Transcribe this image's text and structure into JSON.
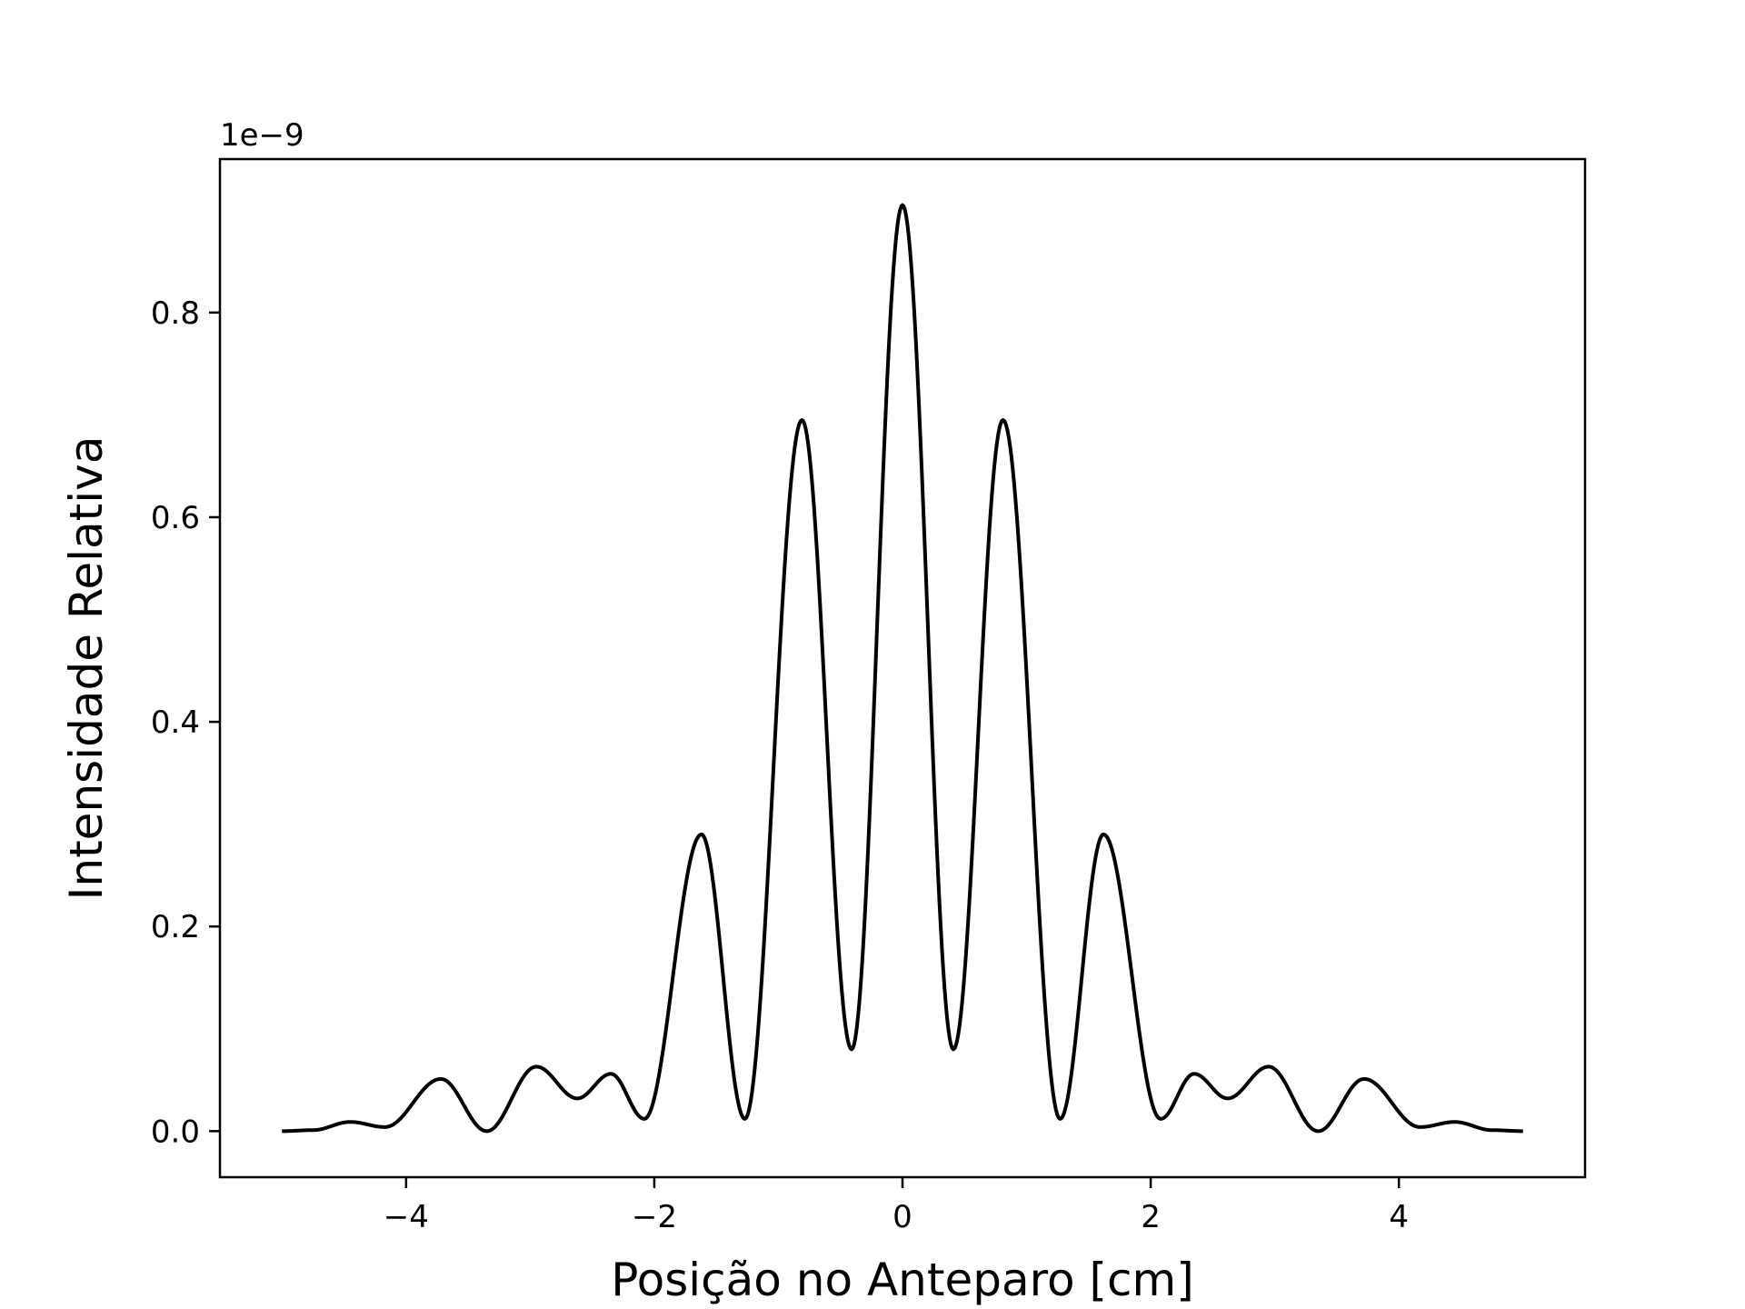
{
  "chart_data": {
    "type": "line",
    "title": "",
    "xlabel": "Posição no Anteparo [cm]",
    "ylabel": "Intensidade Relativa",
    "y_offset_label": "1e−9",
    "xlim": [
      -5.5,
      5.5
    ],
    "ylim": [
      -0.045,
      0.95
    ],
    "x_ticks": [
      -4,
      -2,
      0,
      2,
      4
    ],
    "x_tick_labels": [
      "−4",
      "−2",
      "0",
      "2",
      "4"
    ],
    "y_ticks": [
      0.0,
      0.2,
      0.4,
      0.6,
      0.8
    ],
    "y_tick_labels": [
      "0.0",
      "0.2",
      "0.4",
      "0.6",
      "0.8"
    ],
    "grid": false,
    "line_color": "#000000",
    "series": [
      {
        "x": [
          -5.0,
          -4.75,
          -4.45,
          -4.17,
          -3.72,
          -3.35,
          -2.95,
          -2.62,
          -2.35,
          -2.08,
          -1.62,
          -1.27,
          -0.81,
          -0.41,
          0.0,
          0.41,
          0.81,
          1.27,
          1.62,
          2.08,
          2.35,
          2.62,
          2.95,
          3.35,
          3.72,
          4.17,
          4.45,
          4.75,
          5.0
        ],
        "values": [
          0.0,
          0.001,
          0.009,
          0.004,
          0.051,
          0.0,
          0.063,
          0.032,
          0.056,
          0.012,
          0.29,
          0.012,
          0.695,
          0.08,
          0.905,
          0.08,
          0.695,
          0.012,
          0.29,
          0.012,
          0.056,
          0.032,
          0.063,
          0.0,
          0.051,
          0.004,
          0.009,
          0.001,
          0.0
        ]
      }
    ]
  }
}
